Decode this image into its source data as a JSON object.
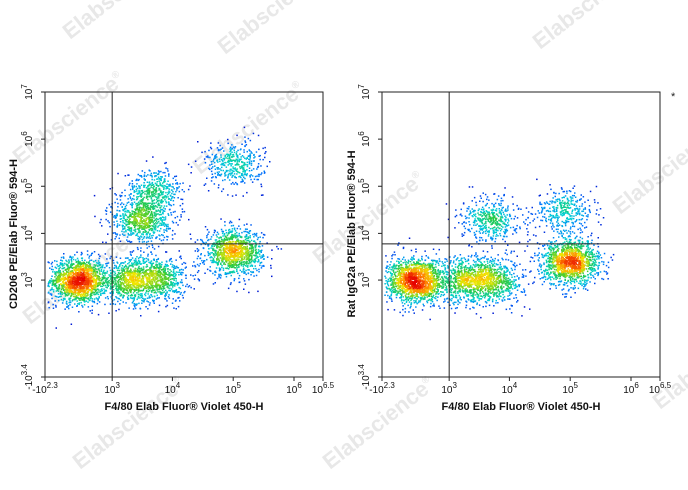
{
  "watermark": {
    "text": "Elabscience",
    "registered_mark": "®"
  },
  "corner_mark": "*",
  "chart_data": [
    {
      "type": "scatter",
      "xlabel": "F4/80 Elab Fluor® Violet 450-H",
      "ylabel": "CD206 PE/Elab Fluor® 594-H",
      "x_scale": "biexponential",
      "y_scale": "biexponential",
      "xlim": [
        -200,
        3000000
      ],
      "ylim": [
        -2500,
        10000000
      ],
      "x_ticks": [
        {
          "value": -200,
          "base": "-10",
          "exp": "2.3"
        },
        {
          "value": 1000,
          "base": "10",
          "exp": "3"
        },
        {
          "value": 10000,
          "base": "10",
          "exp": "4"
        },
        {
          "value": 100000,
          "base": "10",
          "exp": "5"
        },
        {
          "value": 1000000,
          "base": "10",
          "exp": "6"
        },
        {
          "value": 3000000,
          "base": "10",
          "exp": "6.5"
        }
      ],
      "y_ticks": [
        {
          "value": -2500,
          "base": "-10",
          "exp": "3.4"
        },
        {
          "value": 1000,
          "base": "10",
          "exp": "3"
        },
        {
          "value": 10000,
          "base": "10",
          "exp": "4"
        },
        {
          "value": 100000,
          "base": "10",
          "exp": "5"
        },
        {
          "value": 1000000,
          "base": "10",
          "exp": "6"
        },
        {
          "value": 10000000,
          "base": "10",
          "exp": "7"
        }
      ],
      "quadrant_gate": {
        "x": 1000,
        "y": 6000
      },
      "populations": [
        {
          "x": 200,
          "y": 1000,
          "n": 1500
        },
        {
          "x": 5500,
          "y": 1100,
          "n": 700
        },
        {
          "x": 1800,
          "y": 1000,
          "n": 650
        },
        {
          "x": 100000,
          "y": 4000,
          "n": 1100
        },
        {
          "x": 5000,
          "y": 80000,
          "n": 450
        },
        {
          "x": 100000,
          "y": 300000,
          "n": 400
        },
        {
          "x": 3000,
          "y": 20000,
          "n": 700
        }
      ],
      "grid": false,
      "legend": "none"
    },
    {
      "type": "scatter",
      "xlabel": "F4/80 Elab Fluor® Violet 450-H",
      "ylabel": "Rat IgG2a PE/Elab Fluor® 594-H",
      "x_scale": "biexponential",
      "y_scale": "biexponential",
      "xlim": [
        -200,
        3000000
      ],
      "ylim": [
        -2500,
        10000000
      ],
      "x_ticks": [
        {
          "value": -200,
          "base": "-10",
          "exp": "2.3"
        },
        {
          "value": 1000,
          "base": "10",
          "exp": "3"
        },
        {
          "value": 10000,
          "base": "10",
          "exp": "4"
        },
        {
          "value": 100000,
          "base": "10",
          "exp": "5"
        },
        {
          "value": 1000000,
          "base": "10",
          "exp": "6"
        },
        {
          "value": 3000000,
          "base": "10",
          "exp": "6.5"
        }
      ],
      "y_ticks": [
        {
          "value": -2500,
          "base": "-10",
          "exp": "3.4"
        },
        {
          "value": 1000,
          "base": "10",
          "exp": "3"
        },
        {
          "value": 10000,
          "base": "10",
          "exp": "4"
        },
        {
          "value": 100000,
          "base": "10",
          "exp": "5"
        },
        {
          "value": 1000000,
          "base": "10",
          "exp": "6"
        },
        {
          "value": 10000000,
          "base": "10",
          "exp": "7"
        }
      ],
      "quadrant_gate": {
        "x": 1000,
        "y": 6000
      },
      "populations": [
        {
          "x": 200,
          "y": 1000,
          "n": 1500
        },
        {
          "x": 5500,
          "y": 1000,
          "n": 650
        },
        {
          "x": 1800,
          "y": 1000,
          "n": 650
        },
        {
          "x": 100000,
          "y": 2500,
          "n": 1300
        },
        {
          "x": 5000,
          "y": 20000,
          "n": 450
        },
        {
          "x": 80000,
          "y": 30000,
          "n": 350
        }
      ],
      "grid": false,
      "legend": "none"
    }
  ]
}
